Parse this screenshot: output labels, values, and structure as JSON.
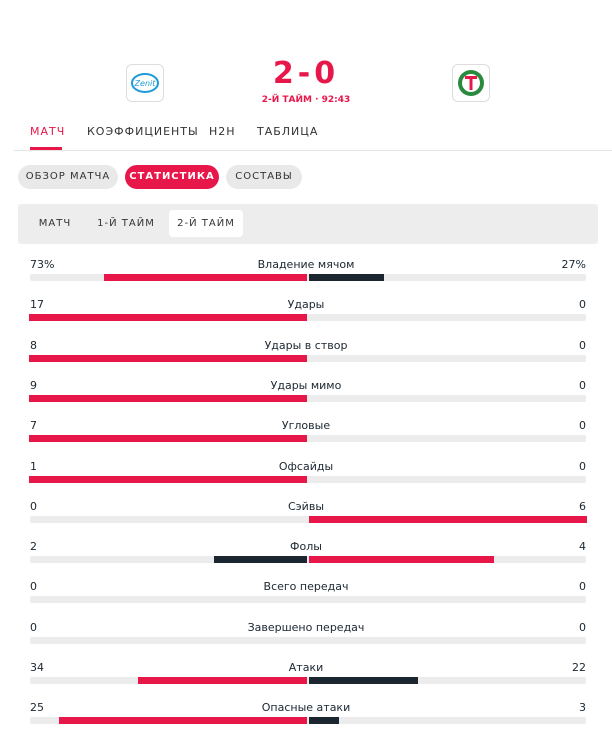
{
  "header": {
    "score": "2-0",
    "status": "2-Й ТАЙМ · 92:43",
    "home_logo": "Zenit",
    "away_logo": "Torpedo"
  },
  "tabs": [
    "МАТЧ",
    "КОЭФФИЦИЕНТЫ",
    "H2H",
    "ТАБЛИЦА"
  ],
  "active_tab": 0,
  "buttons": [
    "ОБЗОР МАТЧА",
    "СТАТИСТИКА",
    "СОСТАВЫ"
  ],
  "active_button": 1,
  "periods": [
    "МАТЧ",
    "1-Й ТАЙМ",
    "2-Й ТАЙМ"
  ],
  "active_period": 2,
  "stats": [
    {
      "name": "Владение мячом",
      "home": 73,
      "away": 27,
      "home_label": "73%",
      "away_label": "27%"
    },
    {
      "name": "Удары",
      "home": 17,
      "away": 0
    },
    {
      "name": "Удары в створ",
      "home": 8,
      "away": 0
    },
    {
      "name": "Удары мимо",
      "home": 9,
      "away": 0
    },
    {
      "name": "Угловые",
      "home": 7,
      "away": 0
    },
    {
      "name": "Офсайды",
      "home": 1,
      "away": 0
    },
    {
      "name": "Сэйвы",
      "home": 0,
      "away": 6
    },
    {
      "name": "Фолы",
      "home": 2,
      "away": 4
    },
    {
      "name": "Всего передач",
      "home": 0,
      "away": 0
    },
    {
      "name": "Завершено передач",
      "home": 0,
      "away": 0
    },
    {
      "name": "Атаки",
      "home": 34,
      "away": 22
    },
    {
      "name": "Опасные атаки",
      "home": 25,
      "away": 3
    }
  ]
}
